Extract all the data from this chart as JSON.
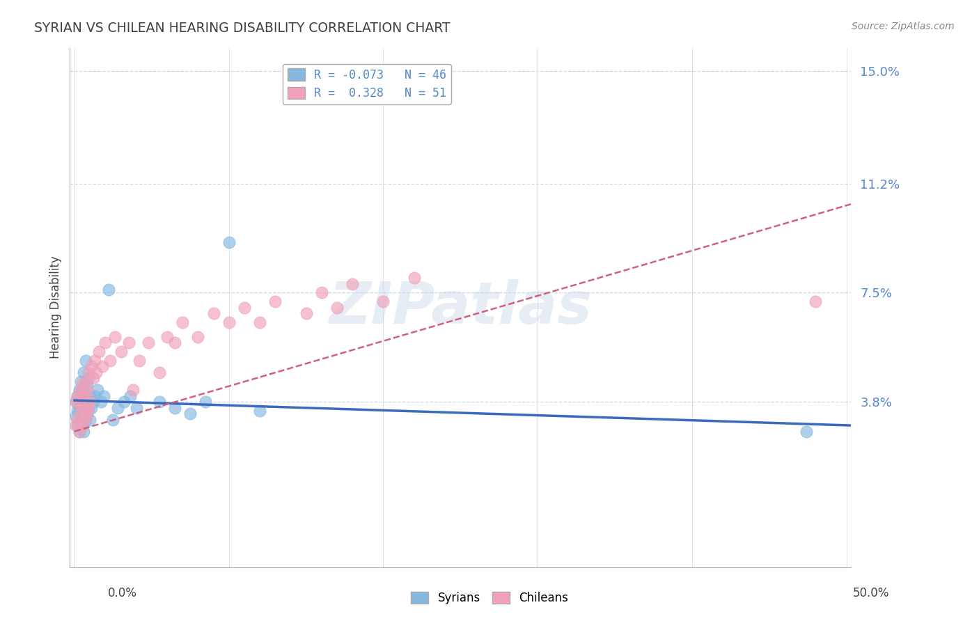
{
  "title": "SYRIAN VS CHILEAN HEARING DISABILITY CORRELATION CHART",
  "source": "Source: ZipAtlas.com",
  "ylabel": "Hearing Disability",
  "yticks": [
    0.0,
    0.038,
    0.075,
    0.112,
    0.15
  ],
  "ytick_labels": [
    "",
    "3.8%",
    "7.5%",
    "11.2%",
    "15.0%"
  ],
  "xlim": [
    -0.003,
    0.503
  ],
  "ylim": [
    -0.018,
    0.158
  ],
  "legend_label1": "R = -0.073   N = 46",
  "legend_label2": "R =  0.328   N = 51",
  "syrian_color": "#85b8e0",
  "chilean_color": "#f0a0b8",
  "trend_blue": "#3a6bbf",
  "trend_pink": "#d06080",
  "watermark": "ZIPatlas",
  "background_color": "#ffffff",
  "grid_color": "#c8d8e8",
  "tick_color": "#5588cc",
  "title_color": "#404040",
  "source_color": "#888888",
  "label_color": "#444444",
  "syrian_points_x": [
    0.001,
    0.001,
    0.002,
    0.002,
    0.002,
    0.003,
    0.003,
    0.003,
    0.004,
    0.004,
    0.004,
    0.005,
    0.005,
    0.005,
    0.006,
    0.006,
    0.006,
    0.006,
    0.007,
    0.007,
    0.007,
    0.008,
    0.008,
    0.009,
    0.009,
    0.01,
    0.01,
    0.011,
    0.012,
    0.013,
    0.015,
    0.017,
    0.019,
    0.022,
    0.025,
    0.028,
    0.032,
    0.036,
    0.04,
    0.055,
    0.065,
    0.075,
    0.085,
    0.1,
    0.12,
    0.474
  ],
  "syrian_points_y": [
    0.033,
    0.038,
    0.03,
    0.035,
    0.04,
    0.028,
    0.036,
    0.042,
    0.032,
    0.038,
    0.045,
    0.03,
    0.036,
    0.042,
    0.028,
    0.034,
    0.04,
    0.048,
    0.032,
    0.038,
    0.052,
    0.034,
    0.044,
    0.036,
    0.046,
    0.032,
    0.04,
    0.036,
    0.038,
    0.04,
    0.042,
    0.038,
    0.04,
    0.076,
    0.032,
    0.036,
    0.038,
    0.04,
    0.036,
    0.038,
    0.036,
    0.034,
    0.038,
    0.092,
    0.035,
    0.028
  ],
  "chilean_points_x": [
    0.001,
    0.001,
    0.002,
    0.002,
    0.003,
    0.003,
    0.004,
    0.004,
    0.005,
    0.005,
    0.005,
    0.006,
    0.006,
    0.007,
    0.007,
    0.008,
    0.008,
    0.009,
    0.009,
    0.01,
    0.011,
    0.012,
    0.013,
    0.014,
    0.016,
    0.018,
    0.02,
    0.023,
    0.026,
    0.03,
    0.035,
    0.038,
    0.042,
    0.048,
    0.055,
    0.06,
    0.065,
    0.07,
    0.08,
    0.09,
    0.1,
    0.11,
    0.12,
    0.13,
    0.15,
    0.16,
    0.17,
    0.18,
    0.2,
    0.22,
    0.48
  ],
  "chilean_points_y": [
    0.03,
    0.038,
    0.032,
    0.04,
    0.028,
    0.038,
    0.034,
    0.042,
    0.03,
    0.036,
    0.044,
    0.032,
    0.04,
    0.035,
    0.045,
    0.033,
    0.042,
    0.036,
    0.048,
    0.038,
    0.05,
    0.046,
    0.052,
    0.048,
    0.055,
    0.05,
    0.058,
    0.052,
    0.06,
    0.055,
    0.058,
    0.042,
    0.052,
    0.058,
    0.048,
    0.06,
    0.058,
    0.065,
    0.06,
    0.068,
    0.065,
    0.07,
    0.065,
    0.072,
    0.068,
    0.075,
    0.07,
    0.078,
    0.072,
    0.08,
    0.072
  ]
}
